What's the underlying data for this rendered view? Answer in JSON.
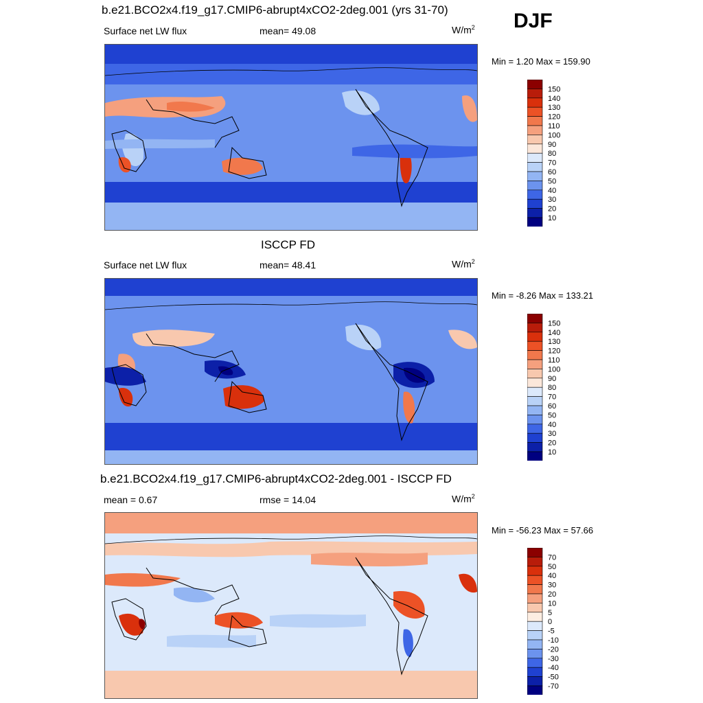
{
  "season": "DJF",
  "panels": [
    {
      "title": "b.e21.BCO2x4.f19_g17.CMIP6-abrupt4xCO2-2deg.001 (yrs 31-70)",
      "left_label": "Surface net LW flux",
      "mid_label": "mean=  49.08",
      "unit": "W/m",
      "unit_sup": "2",
      "minmax": "Min =   1.20 Max = 159.90",
      "colorbar_labels": [
        "150",
        "140",
        "130",
        "120",
        "110",
        "100",
        "90",
        "80",
        "70",
        "60",
        "50",
        "40",
        "30",
        "20",
        "10"
      ],
      "colors": [
        "#8b0000",
        "#b81c0a",
        "#d9300c",
        "#ec5226",
        "#f1784c",
        "#f5a07e",
        "#f8c8ae",
        "#fbe7da",
        "#dce9fb",
        "#b9d2f7",
        "#93b5f3",
        "#6c93ee",
        "#3e66e6",
        "#1f41d1",
        "#0c20a8",
        "#000080"
      ]
    },
    {
      "title": "ISCCP FD",
      "left_label": "Surface net LW flux",
      "mid_label": "mean=  48.41",
      "unit": "W/m",
      "unit_sup": "2",
      "minmax": "Min =  -8.26 Max = 133.21",
      "colorbar_labels": [
        "150",
        "140",
        "130",
        "120",
        "110",
        "100",
        "90",
        "80",
        "70",
        "60",
        "50",
        "40",
        "30",
        "20",
        "10"
      ],
      "colors": [
        "#8b0000",
        "#b81c0a",
        "#d9300c",
        "#ec5226",
        "#f1784c",
        "#f5a07e",
        "#f8c8ae",
        "#fbe7da",
        "#dce9fb",
        "#b9d2f7",
        "#93b5f3",
        "#6c93ee",
        "#3e66e6",
        "#1f41d1",
        "#0c20a8",
        "#000080"
      ]
    },
    {
      "title": "b.e21.BCO2x4.f19_g17.CMIP6-abrupt4xCO2-2deg.001 - ISCCP FD",
      "left_label": "mean =   0.67",
      "mid_label": "rmse =  14.04",
      "unit": "W/m",
      "unit_sup": "2",
      "minmax": "Min = -56.23 Max =  57.66",
      "colorbar_labels": [
        "70",
        "50",
        "40",
        "30",
        "20",
        "10",
        "5",
        "0",
        "-5",
        "-10",
        "-20",
        "-30",
        "-40",
        "-50",
        "-70"
      ],
      "colors": [
        "#8b0000",
        "#b81c0a",
        "#d9300c",
        "#ec5226",
        "#f1784c",
        "#f5a07e",
        "#f8c8ae",
        "#fdeee2",
        "#dce9fb",
        "#b9d2f7",
        "#93b5f3",
        "#6c93ee",
        "#3e66e6",
        "#1f41d1",
        "#0c20a8",
        "#000080"
      ]
    }
  ]
}
